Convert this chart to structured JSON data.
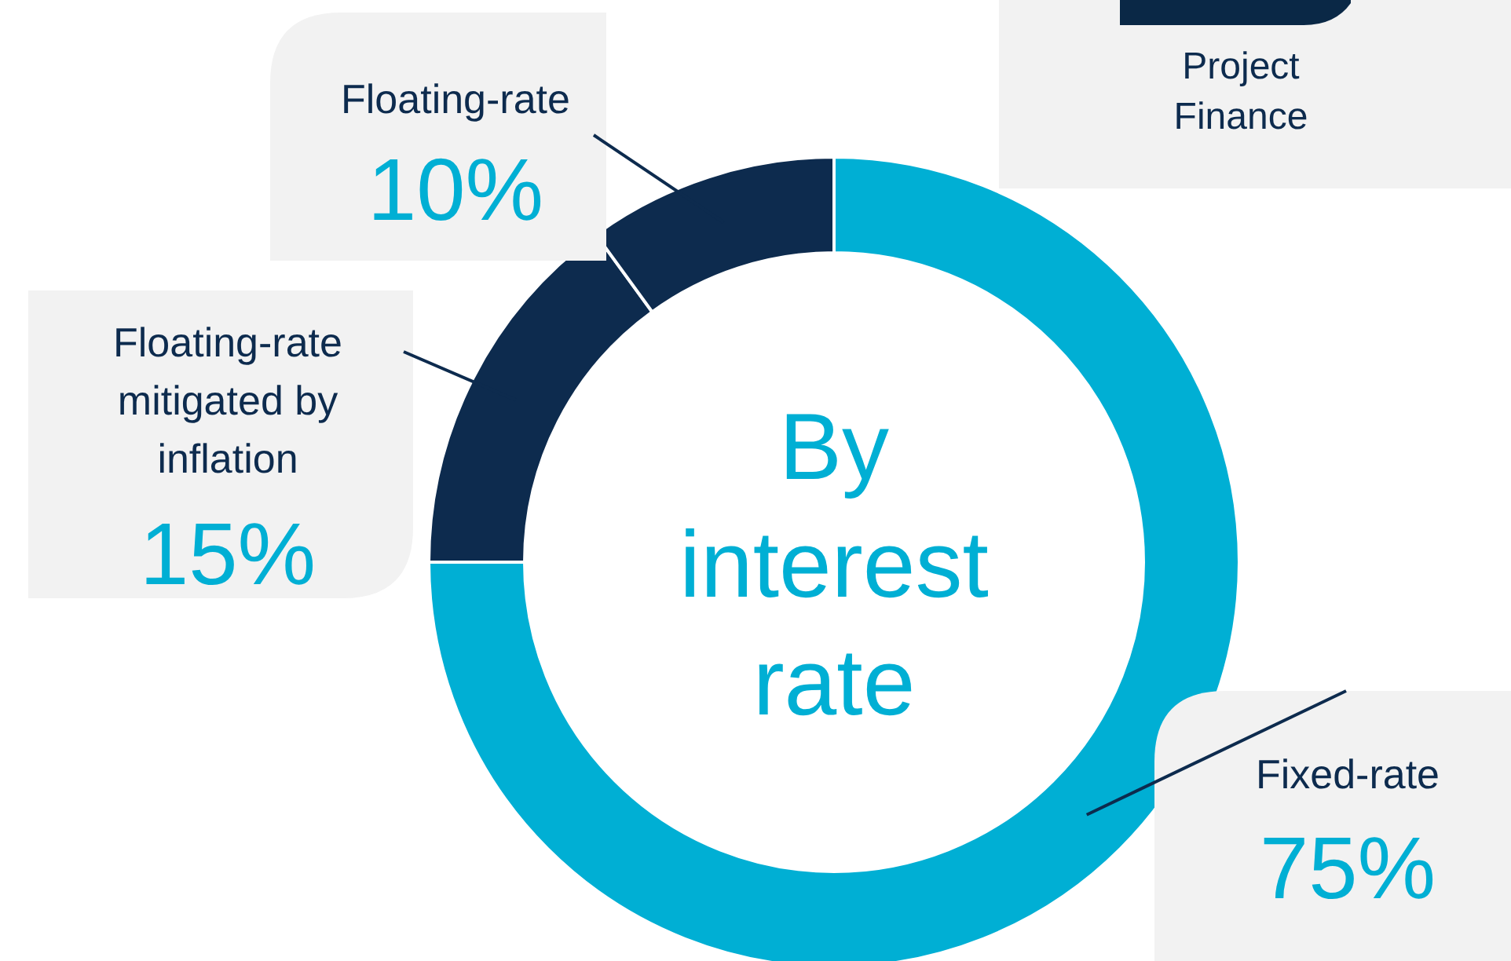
{
  "chart_data": {
    "type": "donut",
    "title": "By interest rate",
    "categories": [
      "Fixed-rate",
      "Floating-rate mitigated by inflation",
      "Floating-rate"
    ],
    "values": [
      75,
      15,
      10
    ],
    "colors": [
      "#00afd4",
      "#0d2b4e",
      "#0d2b4e"
    ],
    "value_labels": [
      "75%",
      "15%",
      "10%"
    ],
    "annotations": [
      "Project Finance"
    ]
  }
}
